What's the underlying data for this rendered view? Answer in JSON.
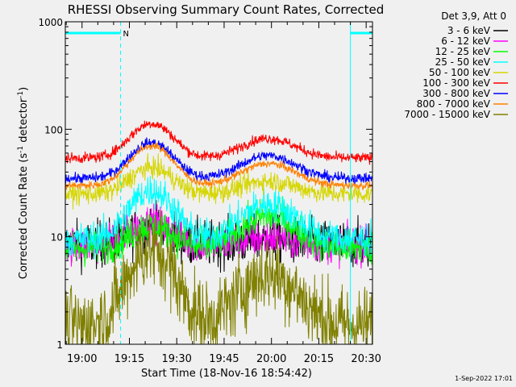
{
  "chart_data": {
    "type": "line",
    "title": "RHESSI Observing Summary Count Rates, Corrected",
    "xlabel": "Start Time (18-Nov-16 18:54:42)",
    "ylabel_main": "Corrected Count Rate (s",
    "ylabel_exp1": "-1",
    "ylabel_mid": " detector",
    "ylabel_exp2": "-1",
    "ylabel_end": ")",
    "yscale": "log",
    "ylim": [
      1,
      1000
    ],
    "xlim_min": [
      -5.3,
      92
    ],
    "x_ticks": [
      {
        "min": 0,
        "label": "19:00"
      },
      {
        "min": 15,
        "label": "19:15"
      },
      {
        "min": 30,
        "label": "19:30"
      },
      {
        "min": 45,
        "label": "19:45"
      },
      {
        "min": 60,
        "label": "20:00"
      },
      {
        "min": 75,
        "label": "20:15"
      },
      {
        "min": 90,
        "label": "20:30"
      }
    ],
    "y_ticks": [
      {
        "value": 1,
        "label": "1"
      },
      {
        "value": 10,
        "label": "10"
      },
      {
        "value": 100,
        "label": "100"
      },
      {
        "value": 1000,
        "label": "1000"
      }
    ],
    "legend_title": "Det 3,9, Att 0",
    "series": [
      {
        "name": "3 - 6 keV",
        "color": "#000000",
        "base": 8.5,
        "peak1": 12,
        "peak2": 9.5,
        "noise": 0.18
      },
      {
        "name": "6 - 12 keV",
        "color": "#ff00ff",
        "base": 8.3,
        "peak1": 13.5,
        "peak2": 9.8,
        "noise": 0.14
      },
      {
        "name": "12 - 25 keV",
        "color": "#00ff00",
        "base": 7.8,
        "peak1": 12.5,
        "peak2": 15.5,
        "noise": 0.13
      },
      {
        "name": "25 - 50 keV",
        "color": "#00ffff",
        "base": 9.5,
        "peak1": 27,
        "peak2": 20,
        "noise": 0.13
      },
      {
        "name": "50 - 100 keV",
        "color": "#d6d600",
        "base": 25,
        "peak1": 44,
        "peak2": 33,
        "noise": 0.08
      },
      {
        "name": "100 - 300 keV",
        "color": "#ff0000",
        "base": 54,
        "peak1": 113,
        "peak2": 82,
        "noise": 0.04
      },
      {
        "name": "300 - 800 keV",
        "color": "#0000ff",
        "base": 35,
        "peak1": 75,
        "peak2": 57,
        "noise": 0.04
      },
      {
        "name": "800 - 7000 keV",
        "color": "#ff8000",
        "base": 30,
        "peak1": 70,
        "peak2": 48,
        "noise": 0.03
      },
      {
        "name": "7000 - 15000 keV",
        "color": "#808000",
        "base": 1.5,
        "peak1": 7.5,
        "peak2": 4.5,
        "noise": 0.3
      }
    ],
    "flare_peaks_min": [
      22,
      59
    ],
    "night_intervals_min": [
      [
        -5.3,
        12.2
      ],
      [
        85,
        92
      ]
    ],
    "saa_markers_min": [
      12.2,
      85,
      92
    ],
    "flag_label": "N",
    "timestamp": "1-Sep-2022 17:01"
  }
}
